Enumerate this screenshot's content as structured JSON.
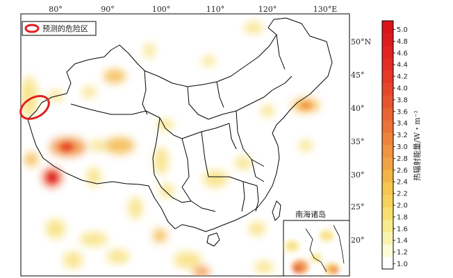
{
  "legend": {
    "label": "预测的危险区"
  },
  "inset": {
    "title": "南海诸岛"
  },
  "lon_labels": [
    "80°",
    "90°",
    "100°",
    "110°",
    "120°",
    "130°E"
  ],
  "lat_labels": [
    "50°N",
    "45°",
    "40°",
    "35°",
    "30°",
    "25°",
    "20°"
  ],
  "colorbar": {
    "title": "热辐射能量/W・m⁻²",
    "ticks": [
      "5.0",
      "4.8",
      "4.6",
      "4.4",
      "4.2",
      "4.0",
      "3.8",
      "3.6",
      "3.4",
      "3.2",
      "3.0",
      "2.8",
      "2.6",
      "2.4",
      "2.2",
      "2.0",
      "1.8",
      "1.6",
      "1.4",
      "1.2",
      "1.0"
    ],
    "colors": [
      "#ffffff",
      "#fcfbd8",
      "#faf3b0",
      "#f8eb8c",
      "#f7e06e",
      "#f6d25a",
      "#f5c650",
      "#f3b548",
      "#f2a444",
      "#f09440",
      "#ee843c",
      "#ec7438",
      "#ea6434",
      "#e85430",
      "#e6462c",
      "#e43a28",
      "#e22e25",
      "#df2422",
      "#dc1c1f",
      "#d9141c"
    ]
  },
  "colors": {
    "hot_zone": "#e02020",
    "warm": "#f4b84a",
    "mild": "#f7e07a",
    "boundary": "#000000"
  }
}
